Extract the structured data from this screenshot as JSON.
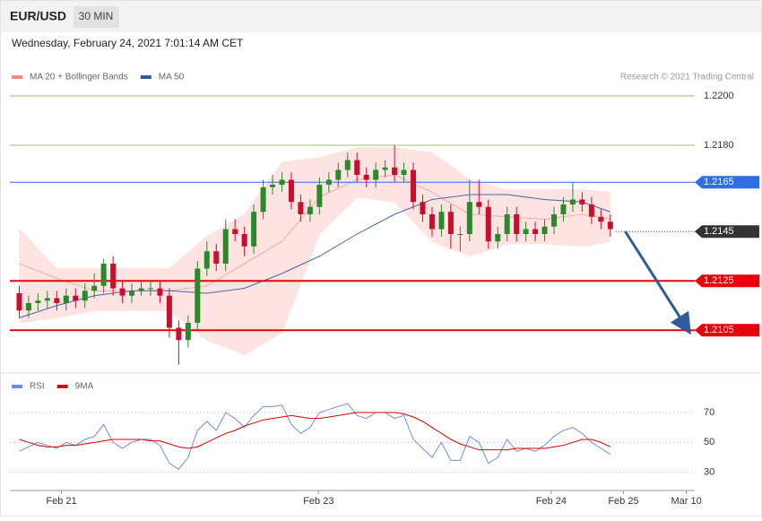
{
  "header": {
    "symbol": "EUR/USD",
    "timeframe": "30 MIN",
    "timestamp": "Wednesday, February 24, 2021 7:01:14 AM CET"
  },
  "chart_data": [
    {
      "type": "candlestick",
      "credit": "Research © 2021 Trading Central",
      "up_color": "#2a8a2a",
      "down_color": "#c8102e",
      "band_fill": "#fde3e1",
      "xlim": [
        -1,
        72
      ],
      "ylim": [
        1.209,
        1.2204
      ],
      "yticks": [
        {
          "value": 1.22,
          "label": "1.2200"
        },
        {
          "value": 1.218,
          "label": "1.2180"
        }
      ],
      "grid_color": "#9bc46a",
      "open": [
        1.212,
        1.2113,
        1.2116,
        1.2117,
        1.2118,
        1.2116,
        1.2119,
        1.2117,
        1.2121,
        1.2123,
        1.2132,
        1.2122,
        1.2119,
        1.2121,
        1.2122,
        1.2122,
        1.2119,
        1.2106,
        1.2101,
        1.2108,
        1.213,
        1.2137,
        1.2132,
        1.2146,
        1.2144,
        1.2139,
        1.2153,
        1.2163,
        1.2164,
        1.2166,
        1.2157,
        1.2152,
        1.2155,
        1.2164,
        1.2166,
        1.217,
        1.2174,
        1.2168,
        1.2166,
        1.217,
        1.2171,
        1.2168,
        1.217,
        1.2157,
        1.2152,
        1.2146,
        1.2153,
        1.2144,
        1.2144,
        1.2157,
        1.2155,
        1.2141,
        1.2144,
        1.2152,
        1.2144,
        1.2146,
        1.2144,
        1.2147,
        1.2152,
        1.2156,
        1.2158,
        1.2156,
        1.2151,
        1.2149
      ],
      "high": [
        1.2123,
        1.2119,
        1.212,
        1.2121,
        1.2121,
        1.2122,
        1.2122,
        1.2124,
        1.2128,
        1.2134,
        1.2135,
        1.2125,
        1.2124,
        1.2125,
        1.2125,
        1.2125,
        1.2122,
        1.2109,
        1.2111,
        1.2133,
        1.2141,
        1.214,
        1.215,
        1.215,
        1.2147,
        1.2156,
        1.2166,
        1.2168,
        1.2169,
        1.2169,
        1.216,
        1.2158,
        1.2167,
        1.2169,
        1.2173,
        1.2177,
        1.2177,
        1.2171,
        1.2173,
        1.2174,
        1.218,
        1.2173,
        1.2173,
        1.216,
        1.2155,
        1.2156,
        1.2156,
        1.2147,
        1.2166,
        1.2166,
        1.2158,
        1.2147,
        1.2155,
        1.2155,
        1.2149,
        1.2149,
        1.215,
        1.2155,
        1.2159,
        1.2165,
        1.2161,
        1.2159,
        1.2154,
        1.2152
      ],
      "low": [
        1.211,
        1.211,
        1.2113,
        1.2114,
        1.2113,
        1.2113,
        1.2114,
        1.2114,
        1.2118,
        1.212,
        1.2119,
        1.2116,
        1.2116,
        1.2119,
        1.2119,
        1.2116,
        1.2102,
        1.2091,
        1.2098,
        1.2105,
        1.2127,
        1.2129,
        1.2129,
        1.2141,
        1.2135,
        1.2136,
        1.215,
        1.216,
        1.2161,
        1.2154,
        1.2149,
        1.2149,
        1.2152,
        1.2161,
        1.2163,
        1.2167,
        1.2165,
        1.2163,
        1.2163,
        1.2167,
        1.2165,
        1.2165,
        1.2154,
        1.2149,
        1.2143,
        1.2143,
        1.2138,
        1.2137,
        1.2141,
        1.2152,
        1.2138,
        1.2138,
        1.2141,
        1.2141,
        1.2141,
        1.2141,
        1.2141,
        1.2144,
        1.2149,
        1.2153,
        1.2153,
        1.2148,
        1.2146,
        1.2143
      ],
      "close": [
        1.2113,
        1.2116,
        1.2117,
        1.2118,
        1.2116,
        1.2119,
        1.2117,
        1.2121,
        1.2123,
        1.2132,
        1.2122,
        1.2119,
        1.2121,
        1.2122,
        1.2122,
        1.2119,
        1.2106,
        1.2101,
        1.2108,
        1.213,
        1.2137,
        1.2132,
        1.2146,
        1.2144,
        1.2139,
        1.2153,
        1.2163,
        1.2164,
        1.2166,
        1.2157,
        1.2152,
        1.2155,
        1.2164,
        1.2166,
        1.217,
        1.2174,
        1.2168,
        1.2166,
        1.217,
        1.2171,
        1.2168,
        1.217,
        1.2157,
        1.2152,
        1.2146,
        1.2153,
        1.2144,
        1.2144,
        1.2157,
        1.2155,
        1.2141,
        1.2144,
        1.2152,
        1.2144,
        1.2146,
        1.2144,
        1.2147,
        1.2152,
        1.2156,
        1.2158,
        1.2156,
        1.2151,
        1.2149,
        1.2146
      ],
      "series": [
        {
          "name": "MA 20 + Bollinger Bands",
          "color": "#f28b82",
          "x": [
            0,
            4,
            8,
            12,
            16,
            20,
            24,
            28,
            32,
            36,
            40,
            44,
            48,
            52,
            56,
            60,
            63
          ],
          "values": [
            1.2132,
            1.2126,
            1.2121,
            1.2121,
            1.2121,
            1.2123,
            1.2132,
            1.2141,
            1.2159,
            1.2166,
            1.2168,
            1.2161,
            1.2152,
            1.2151,
            1.215,
            1.2152,
            1.215
          ],
          "upper": [
            1.2146,
            1.213,
            1.213,
            1.213,
            1.213,
            1.2143,
            1.2152,
            1.2173,
            1.2175,
            1.2179,
            1.2179,
            1.2177,
            1.2166,
            1.2162,
            1.2162,
            1.2162,
            1.2161
          ],
          "lower": [
            1.2108,
            1.211,
            1.2113,
            1.2113,
            1.2113,
            1.2101,
            1.2095,
            1.2104,
            1.2144,
            1.2159,
            1.2157,
            1.2141,
            1.2135,
            1.214,
            1.214,
            1.2139,
            1.2141
          ]
        },
        {
          "name": "MA 50",
          "color": "#2f5a9e",
          "x": [
            0,
            4,
            8,
            12,
            16,
            20,
            24,
            28,
            32,
            36,
            40,
            44,
            48,
            52,
            56,
            60,
            63
          ],
          "values": [
            1.211,
            1.2115,
            1.2119,
            1.2121,
            1.2121,
            1.212,
            1.2122,
            1.2128,
            1.2135,
            1.2144,
            1.2152,
            1.2158,
            1.216,
            1.216,
            1.2158,
            1.2157,
            1.2153
          ]
        }
      ],
      "levels": [
        {
          "value": 1.2165,
          "label": "1.2165",
          "color": "#2f6fdf",
          "style": "solid"
        },
        {
          "value": 1.2145,
          "label": "1.2145",
          "color": "#333333",
          "style": "dotted"
        },
        {
          "value": 1.2125,
          "label": "1.2125",
          "color": "#e8000b",
          "style": "solid"
        },
        {
          "value": 1.2105,
          "label": "1.2105",
          "color": "#e8000b",
          "style": "solid"
        }
      ],
      "arrow": {
        "from": [
          64.6,
          1.2145
        ],
        "to": [
          71.3,
          1.2105
        ],
        "color": "#2f5a9e"
      }
    },
    {
      "type": "line",
      "ylim": [
        22,
        79
      ],
      "yticks": [
        30,
        50,
        70
      ],
      "xticks": [
        {
          "value": 4.5,
          "label": "Feb 21"
        },
        {
          "value": 31.9,
          "label": "Feb 23"
        },
        {
          "value": 56.7,
          "label": "Feb 24"
        },
        {
          "value": 64.4,
          "label": "Feb 25"
        },
        {
          "value": 71.1,
          "label": "Mar 10"
        }
      ],
      "series": [
        {
          "name": "RSI",
          "color": "#6a8fe0",
          "values": [
            44,
            47,
            50,
            48,
            46,
            50,
            48,
            52,
            54,
            62,
            50,
            46,
            50,
            52,
            52,
            48,
            36,
            32,
            40,
            58,
            64,
            58,
            70,
            66,
            60,
            68,
            74,
            74,
            75,
            62,
            56,
            60,
            70,
            72,
            74,
            76,
            68,
            66,
            70,
            70,
            66,
            68,
            52,
            46,
            40,
            50,
            38,
            38,
            54,
            50,
            36,
            40,
            52,
            44,
            46,
            44,
            48,
            54,
            58,
            60,
            56,
            50,
            46,
            42
          ]
        },
        {
          "name": "9MA",
          "color": "#e00000",
          "values": [
            52,
            50,
            48,
            47,
            47,
            48,
            48,
            49,
            50,
            51,
            52,
            52,
            52,
            52,
            51,
            51,
            49,
            47,
            46,
            47,
            50,
            53,
            56,
            58,
            61,
            63,
            65,
            66,
            67,
            68,
            67,
            66,
            66,
            67,
            68,
            69,
            70,
            70,
            70,
            70,
            70,
            69,
            67,
            64,
            60,
            56,
            52,
            49,
            47,
            45,
            45,
            45,
            45,
            46,
            46,
            46,
            46,
            47,
            48,
            50,
            52,
            52,
            50,
            47
          ]
        }
      ]
    }
  ]
}
